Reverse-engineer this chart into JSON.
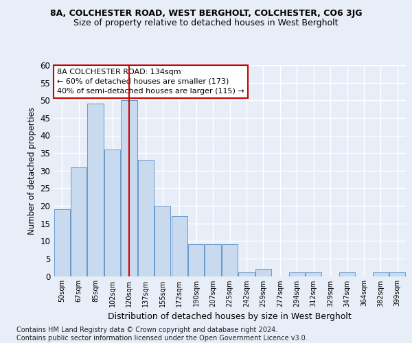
{
  "title": "8A, COLCHESTER ROAD, WEST BERGHOLT, COLCHESTER, CO6 3JG",
  "subtitle": "Size of property relative to detached houses in West Bergholt",
  "xlabel": "Distribution of detached houses by size in West Bergholt",
  "ylabel": "Number of detached properties",
  "categories": [
    "50sqm",
    "67sqm",
    "85sqm",
    "102sqm",
    "120sqm",
    "137sqm",
    "155sqm",
    "172sqm",
    "190sqm",
    "207sqm",
    "225sqm",
    "242sqm",
    "259sqm",
    "277sqm",
    "294sqm",
    "312sqm",
    "329sqm",
    "347sqm",
    "364sqm",
    "382sqm",
    "399sqm"
  ],
  "values": [
    19,
    31,
    49,
    36,
    50,
    33,
    20,
    17,
    9,
    9,
    9,
    1,
    2,
    0,
    1,
    1,
    0,
    1,
    0,
    1,
    1
  ],
  "bar_color": "#c9d9ee",
  "bar_edge_color": "#6699cc",
  "vline_index": 4.5,
  "vline_color": "#cc0000",
  "annotation_line1": "8A COLCHESTER ROAD: 134sqm",
  "annotation_line2": "← 60% of detached houses are smaller (173)",
  "annotation_line3": "40% of semi-detached houses are larger (115) →",
  "annotation_box_color": "#ffffff",
  "annotation_box_edge": "#cc0000",
  "ylim": [
    0,
    60
  ],
  "yticks": [
    0,
    5,
    10,
    15,
    20,
    25,
    30,
    35,
    40,
    45,
    50,
    55,
    60
  ],
  "footer": "Contains HM Land Registry data © Crown copyright and database right 2024.\nContains public sector information licensed under the Open Government Licence v3.0.",
  "bg_color": "#e8eef8",
  "plot_bg_color": "#e8eef8",
  "grid_color": "#ffffff",
  "title_fontsize": 9,
  "subtitle_fontsize": 9
}
